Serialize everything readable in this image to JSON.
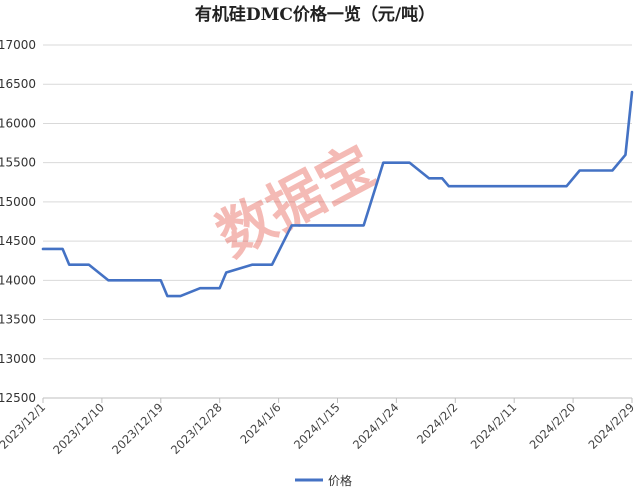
{
  "chart_data": {
    "type": "line",
    "title": "有机硅DMC价格一览（元/吨）",
    "xlabel": "",
    "ylabel": "",
    "ylim": [
      12500,
      17000
    ],
    "yticks": [
      12500,
      13000,
      13500,
      14000,
      14500,
      15000,
      15500,
      16000,
      16500,
      17000
    ],
    "xticks": [
      "2023/12/1",
      "2023/12/10",
      "2023/12/19",
      "2023/12/28",
      "2024/1/6",
      "2024/1/15",
      "2024/1/24",
      "2024/2/2",
      "2024/2/11",
      "2024/2/20",
      "2024/2/29"
    ],
    "grid": "horizontal",
    "legend_position": "bottom",
    "watermark": "数据宝",
    "series": [
      {
        "name": "价格",
        "color": "#4472C4",
        "points": [
          [
            "2023/12/1",
            14400
          ],
          [
            "2023/12/4",
            14400
          ],
          [
            "2023/12/5",
            14200
          ],
          [
            "2023/12/8",
            14200
          ],
          [
            "2023/12/11",
            14000
          ],
          [
            "2023/12/19",
            14000
          ],
          [
            "2023/12/20",
            13800
          ],
          [
            "2023/12/22",
            13800
          ],
          [
            "2023/12/25",
            13900
          ],
          [
            "2023/12/28",
            13900
          ],
          [
            "2023/12/29",
            14100
          ],
          [
            "2024/1/2",
            14200
          ],
          [
            "2024/1/5",
            14200
          ],
          [
            "2024/1/8",
            14700
          ],
          [
            "2024/1/19",
            14700
          ],
          [
            "2024/1/22",
            15500
          ],
          [
            "2024/1/26",
            15500
          ],
          [
            "2024/1/29",
            15300
          ],
          [
            "2024/1/31",
            15300
          ],
          [
            "2024/2/1",
            15200
          ],
          [
            "2024/2/19",
            15200
          ],
          [
            "2024/2/21",
            15400
          ],
          [
            "2024/2/26",
            15400
          ],
          [
            "2024/2/28",
            15600
          ],
          [
            "2024/2/29",
            16400
          ]
        ]
      }
    ]
  }
}
